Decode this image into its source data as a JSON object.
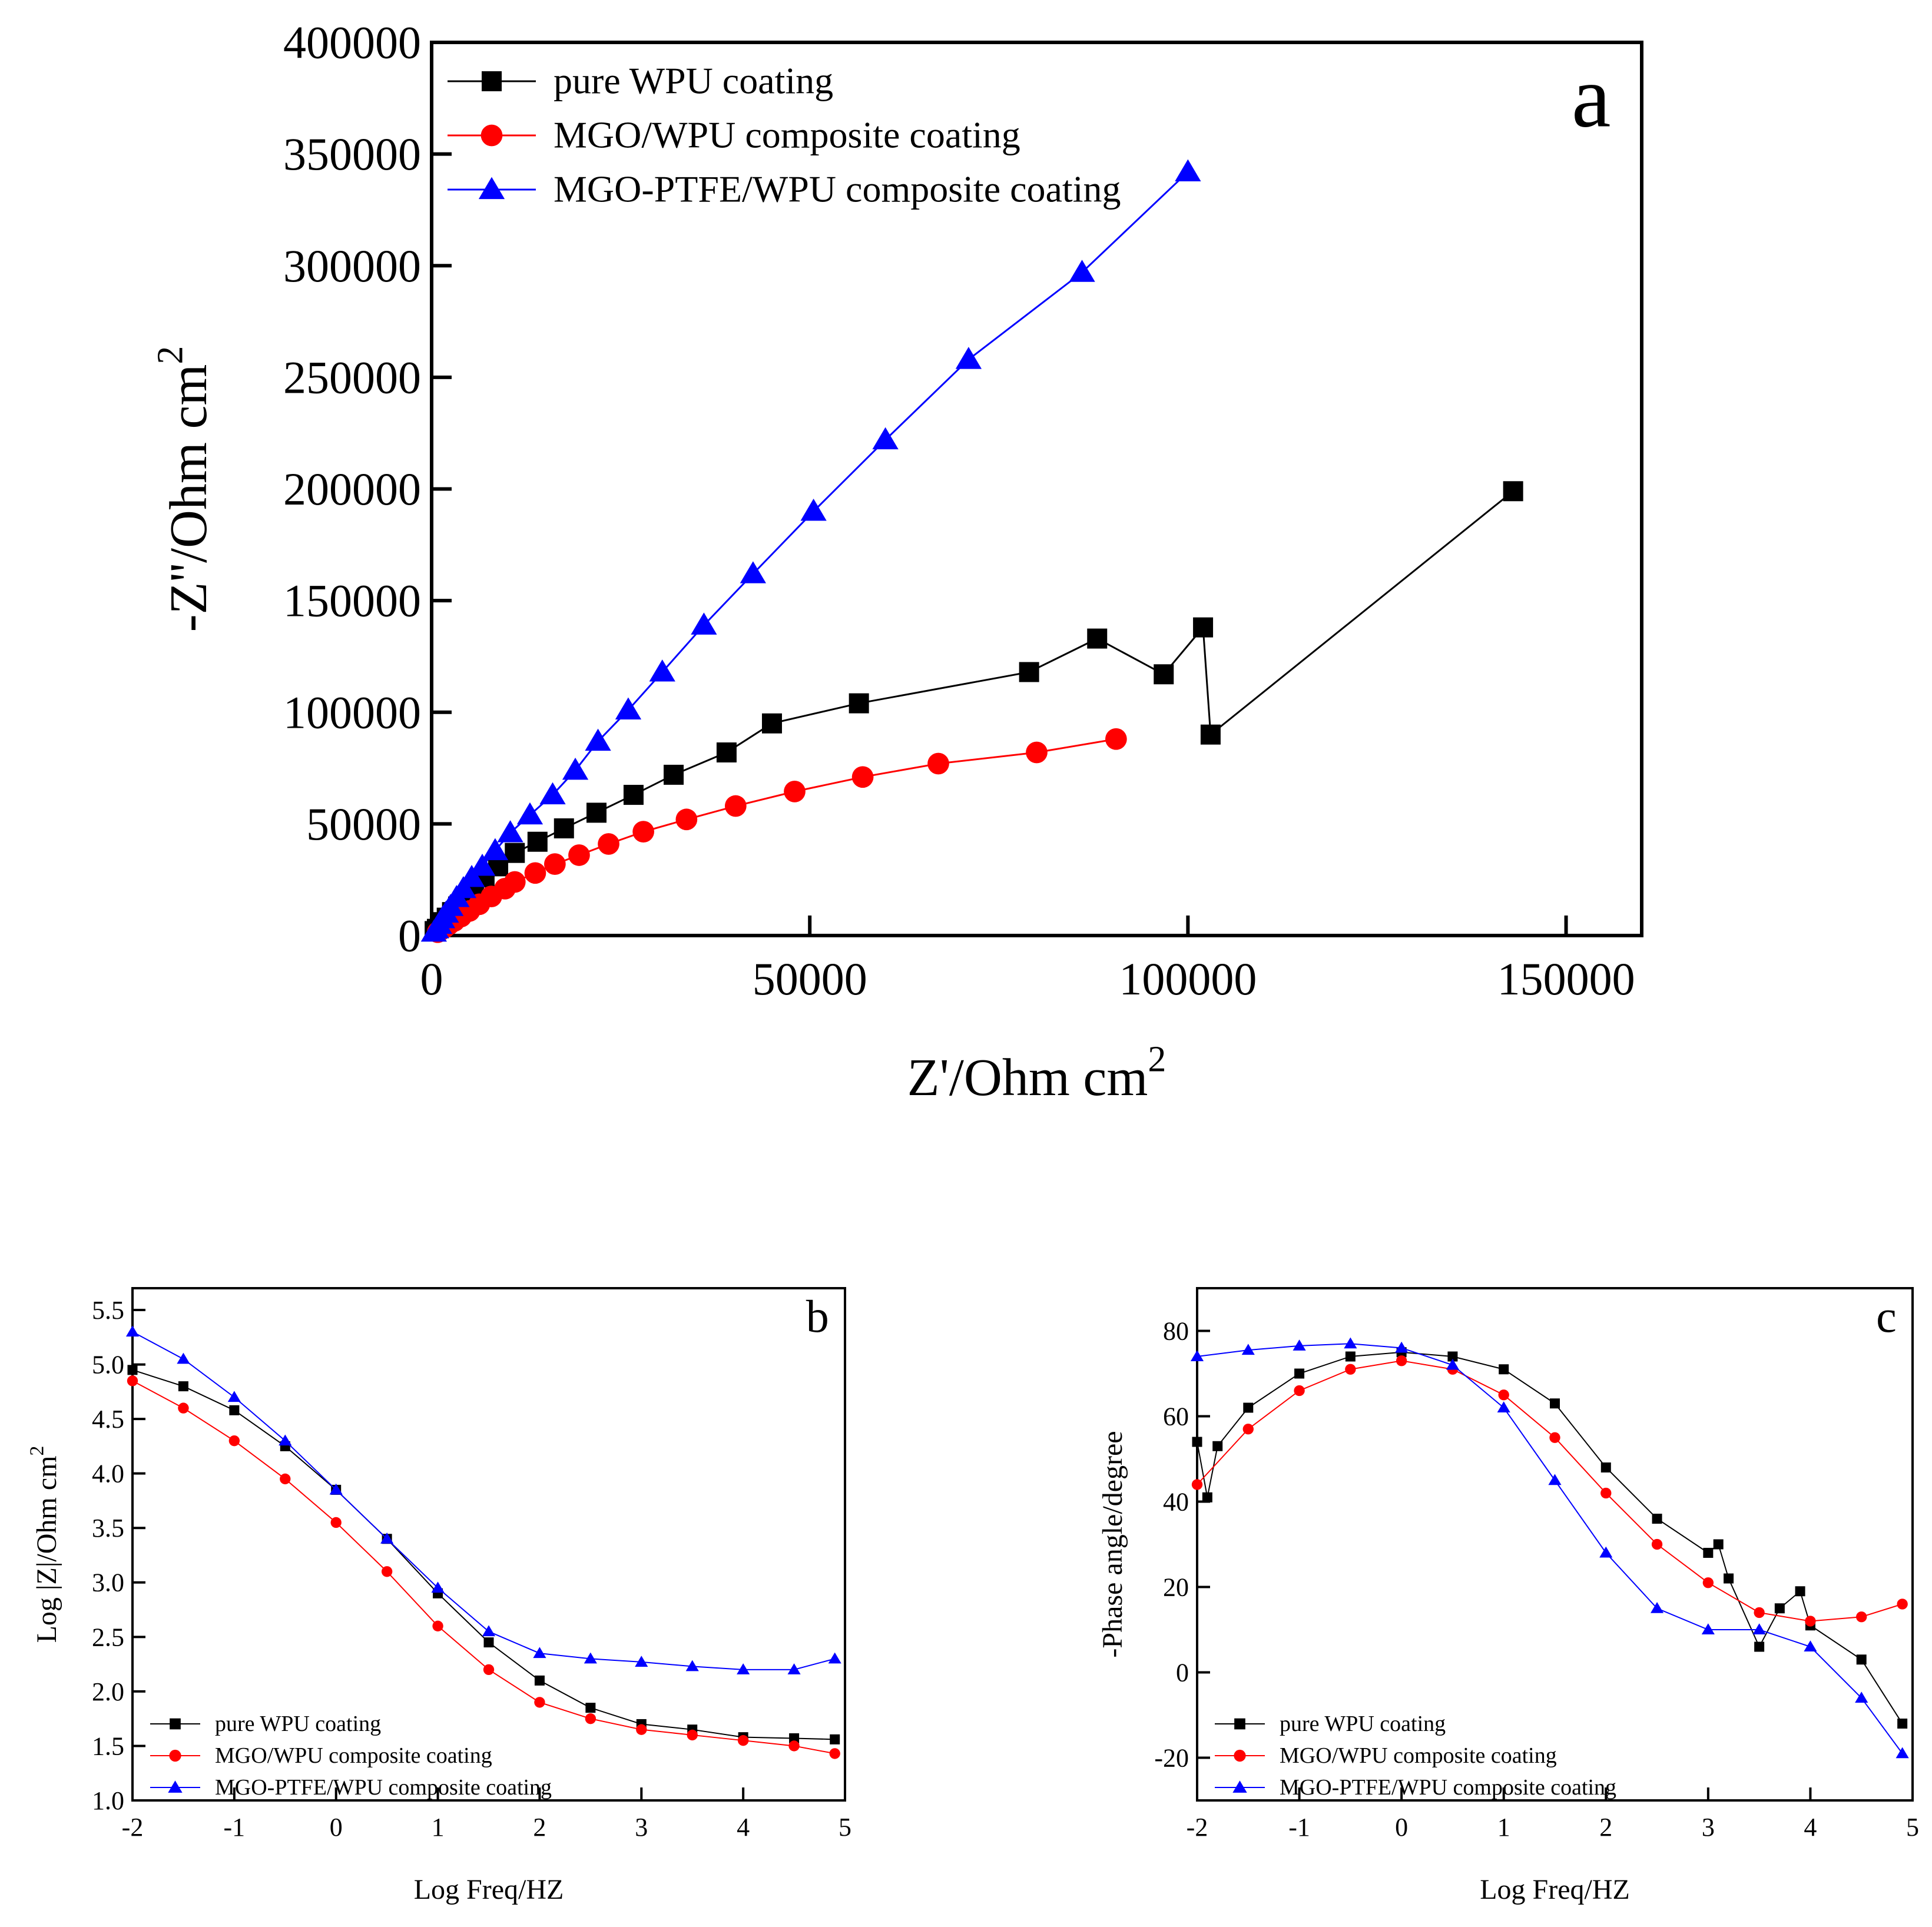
{
  "colors": {
    "pure": "#000000",
    "mgo": "#ff0000",
    "ptfe": "#0000ff",
    "axis": "#000000"
  },
  "legend_labels": {
    "pure": "pure WPU coating",
    "mgo": "MGO/WPU composite coating",
    "ptfe": "MGO-PTFE/WPU composite coating"
  },
  "chart_data": [
    {
      "id": "a",
      "type": "scatter",
      "panel_label": "a",
      "xlabel_main": "Z'/Ohm cm",
      "xlabel_sup": "2",
      "ylabel_main": "-Z''/Ohm cm",
      "ylabel_sup": "2",
      "xlim": [
        0,
        160000
      ],
      "ylim": [
        0,
        400000
      ],
      "xticks": [
        0,
        50000,
        100000,
        150000
      ],
      "yticks": [
        0,
        50000,
        100000,
        150000,
        200000,
        250000,
        300000,
        350000,
        400000
      ],
      "xtick_labels": [
        "0",
        "50000",
        "100000",
        "150000"
      ],
      "ytick_labels": [
        "0",
        "50000",
        "100000",
        "150000",
        "200000",
        "250000",
        "300000",
        "350000",
        "400000"
      ],
      "legend_position": "top-left",
      "series": [
        {
          "key": "pure",
          "name": "pure WPU coating",
          "marker": "square",
          "x": [
            400,
            700,
            1100,
            1500,
            2000,
            2700,
            3500,
            4500,
            5600,
            7000,
            8800,
            11000,
            14000,
            17500,
            21800,
            26700,
            32000,
            39000,
            45000,
            56500,
            79000,
            88000,
            96800,
            102000,
            103000,
            143000
          ],
          "y": [
            2000,
            3000,
            4500,
            6000,
            8000,
            10500,
            13000,
            17000,
            21000,
            26000,
            31000,
            37000,
            42000,
            48000,
            55000,
            63000,
            72000,
            82000,
            95000,
            104000,
            118000,
            133000,
            117000,
            138000,
            90000,
            199000
          ]
        },
        {
          "key": "mgo",
          "name": "MGO/WPU composite coating",
          "marker": "circle",
          "x": [
            800,
            1200,
            1700,
            2300,
            3000,
            3900,
            5000,
            6300,
            7900,
            9700,
            11000,
            13700,
            16300,
            19500,
            23400,
            28000,
            33700,
            40200,
            48000,
            57000,
            67000,
            80000,
            90500
          ],
          "y": [
            1500,
            2500,
            3500,
            5000,
            6500,
            8500,
            11000,
            14000,
            17500,
            21000,
            24000,
            28000,
            32000,
            36000,
            41000,
            46500,
            52000,
            58000,
            64500,
            71000,
            77000,
            82000,
            88000
          ]
        },
        {
          "key": "ptfe",
          "name": "MGO-PTFE/WPU composite coating",
          "marker": "triangle",
          "x": [
            300,
            600,
            1000,
            1400,
            1900,
            2500,
            3300,
            4200,
            5300,
            6700,
            8400,
            10400,
            13000,
            16000,
            19000,
            22000,
            26000,
            30500,
            36000,
            42500,
            50500,
            60000,
            71000,
            86000,
            100000
          ],
          "y": [
            1500,
            3000,
            5000,
            7500,
            10000,
            13000,
            17000,
            21000,
            26000,
            31000,
            38000,
            46000,
            54000,
            63000,
            74000,
            87000,
            101000,
            118000,
            139000,
            162000,
            190000,
            222000,
            258000,
            297000,
            342000
          ]
        }
      ]
    },
    {
      "id": "b",
      "type": "scatter",
      "panel_label": "b",
      "xlabel_main": "Log Freq/HZ",
      "ylabel_main": "Log |Z|/Ohm cm",
      "ylabel_sup": "2",
      "xlim": [
        -2,
        5
      ],
      "ylim": [
        1.0,
        5.7
      ],
      "xticks": [
        -2,
        -1,
        0,
        1,
        2,
        3,
        4,
        5
      ],
      "yticks": [
        1.0,
        1.5,
        2.0,
        2.5,
        3.0,
        3.5,
        4.0,
        4.5,
        5.0,
        5.5
      ],
      "xtick_labels": [
        "-2",
        "-1",
        "0",
        "1",
        "2",
        "3",
        "4",
        "5"
      ],
      "ytick_labels": [
        "1.0",
        "1.5",
        "2.0",
        "2.5",
        "3.0",
        "3.5",
        "4.0",
        "4.5",
        "5.0",
        "5.5"
      ],
      "legend_position": "bottom-left",
      "series": [
        {
          "key": "pure",
          "name": "pure WPU coating",
          "marker": "square",
          "x": [
            -2.0,
            -1.5,
            -1.0,
            -0.5,
            0.0,
            0.5,
            1.0,
            1.5,
            2.0,
            2.5,
            3.0,
            3.5,
            4.0,
            4.5,
            4.9
          ],
          "y": [
            4.95,
            4.8,
            4.58,
            4.25,
            3.85,
            3.4,
            2.9,
            2.45,
            2.1,
            1.85,
            1.7,
            1.65,
            1.58,
            1.57,
            1.56
          ]
        },
        {
          "key": "mgo",
          "name": "MGO/WPU composite coating",
          "marker": "circle",
          "x": [
            -2.0,
            -1.5,
            -1.0,
            -0.5,
            0.0,
            0.5,
            1.0,
            1.5,
            2.0,
            2.5,
            3.0,
            3.5,
            4.0,
            4.5,
            4.9
          ],
          "y": [
            4.85,
            4.6,
            4.3,
            3.95,
            3.55,
            3.1,
            2.6,
            2.2,
            1.9,
            1.75,
            1.65,
            1.6,
            1.55,
            1.5,
            1.43
          ]
        },
        {
          "key": "ptfe",
          "name": "MGO-PTFE/WPU composite coating",
          "marker": "triangle",
          "x": [
            -2.0,
            -1.5,
            -1.0,
            -0.5,
            0.0,
            0.5,
            1.0,
            1.5,
            2.0,
            2.5,
            3.0,
            3.5,
            4.0,
            4.5,
            4.9
          ],
          "y": [
            5.3,
            5.05,
            4.7,
            4.3,
            3.85,
            3.4,
            2.95,
            2.55,
            2.35,
            2.3,
            2.27,
            2.23,
            2.2,
            2.2,
            2.3
          ]
        }
      ]
    },
    {
      "id": "c",
      "type": "scatter",
      "panel_label": "c",
      "xlabel_main": "Log Freq/HZ",
      "ylabel_main": "-Phase angle/degree",
      "xlim": [
        -2,
        5
      ],
      "ylim": [
        -30,
        90
      ],
      "xticks": [
        -2,
        -1,
        0,
        1,
        2,
        3,
        4,
        5
      ],
      "yticks": [
        -20,
        0,
        20,
        40,
        60,
        80
      ],
      "xtick_labels": [
        "-2",
        "-1",
        "0",
        "1",
        "2",
        "3",
        "4",
        "5"
      ],
      "ytick_labels": [
        "-20",
        "0",
        "20",
        "40",
        "60",
        "80"
      ],
      "legend_position": "bottom-left",
      "series": [
        {
          "key": "pure",
          "name": "pure WPU coating",
          "marker": "square",
          "x": [
            -2.0,
            -1.9,
            -1.8,
            -1.5,
            -1.0,
            -0.5,
            0.0,
            0.5,
            1.0,
            1.5,
            2.0,
            2.5,
            3.0,
            3.1,
            3.2,
            3.5,
            3.7,
            3.9,
            4.0,
            4.5,
            4.9
          ],
          "y": [
            54,
            41,
            53,
            62,
            70,
            74,
            75,
            74,
            71,
            63,
            48,
            36,
            28,
            30,
            22,
            6,
            15,
            19,
            11,
            3,
            -12
          ]
        },
        {
          "key": "mgo",
          "name": "MGO/WPU composite coating",
          "marker": "circle",
          "x": [
            -2.0,
            -1.5,
            -1.0,
            -0.5,
            0.0,
            0.5,
            1.0,
            1.5,
            2.0,
            2.5,
            3.0,
            3.5,
            4.0,
            4.5,
            4.9
          ],
          "y": [
            44,
            57,
            66,
            71,
            73,
            71,
            65,
            55,
            42,
            30,
            21,
            14,
            12,
            13,
            16
          ]
        },
        {
          "key": "ptfe",
          "name": "MGO-PTFE/WPU composite coating",
          "marker": "triangle",
          "x": [
            -2.0,
            -1.5,
            -1.0,
            -0.5,
            0.0,
            0.5,
            1.0,
            1.5,
            2.0,
            2.5,
            3.0,
            3.5,
            4.0,
            4.5,
            4.9
          ],
          "y": [
            74,
            75.5,
            76.5,
            77,
            76,
            72,
            62,
            45,
            28,
            15,
            10,
            10,
            6,
            -6,
            -19
          ]
        }
      ]
    }
  ]
}
